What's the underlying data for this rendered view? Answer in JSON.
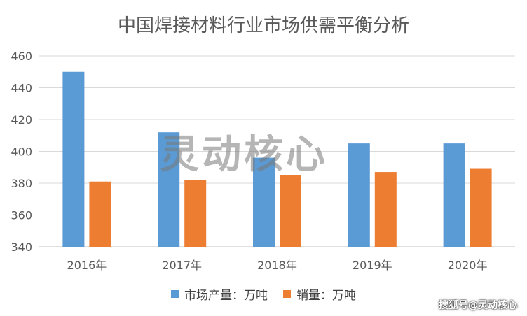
{
  "chart_data": {
    "type": "bar",
    "title": "中国焊接材料行业市场供需平衡分析",
    "categories": [
      "2016年",
      "2017年",
      "2018年",
      "2019年",
      "2020年"
    ],
    "series": [
      {
        "name": "市场产量：万吨",
        "color": "#5b9bd5",
        "values": [
          450,
          412,
          396,
          405,
          405
        ]
      },
      {
        "name": "销量：万吨",
        "color": "#ed7d31",
        "values": [
          381,
          382,
          385,
          387,
          389
        ]
      }
    ],
    "ylim": [
      340,
      460
    ],
    "yticks": [
      340,
      360,
      380,
      400,
      420,
      440,
      460
    ],
    "grid": true,
    "legend_position": "bottom"
  },
  "watermark": "灵动核心",
  "footer_watermark": "搜狐号@灵动核心"
}
